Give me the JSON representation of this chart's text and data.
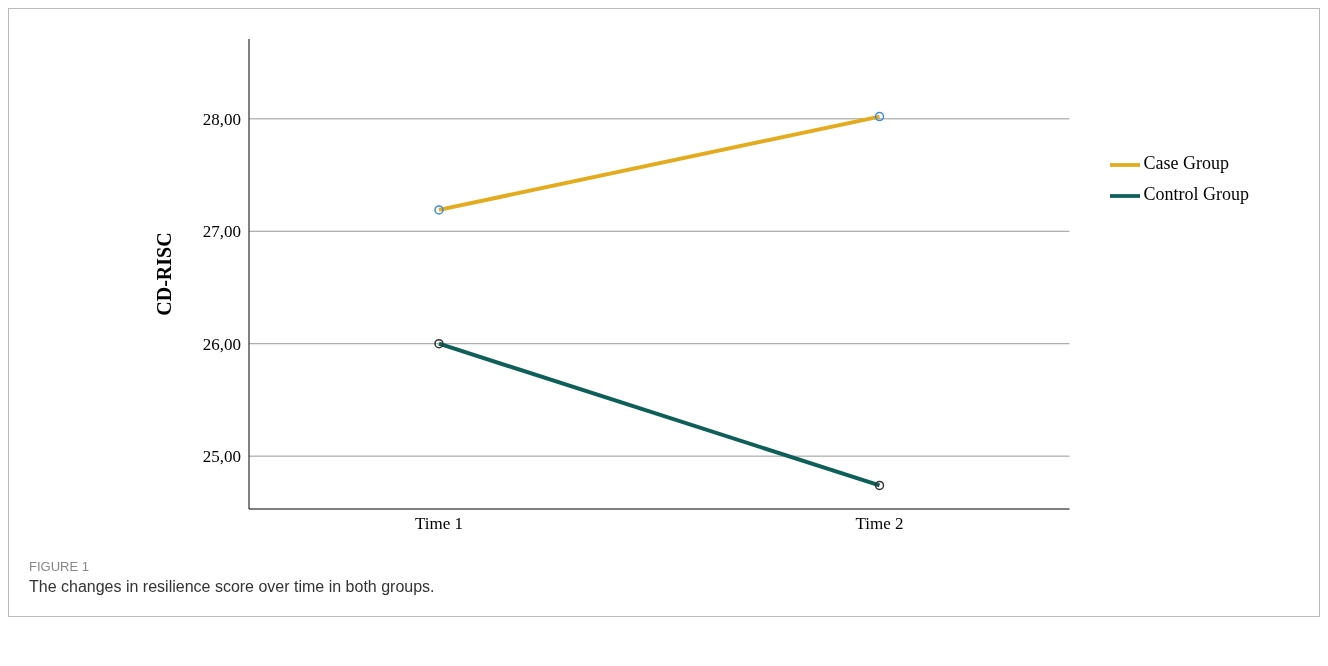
{
  "chart_data": {
    "type": "line",
    "categories": [
      "Time 1",
      "Time 2"
    ],
    "series": [
      {
        "name": "Case Group",
        "color": "#e3ab1e",
        "values": [
          27.19,
          28.02
        ]
      },
      {
        "name": "Control Group",
        "color": "#0d5f57",
        "values": [
          26.0,
          24.74
        ]
      }
    ],
    "ylabel": "CD-RISC",
    "ylim": [
      24.53,
      28.71
    ],
    "yticks": [
      {
        "value": 25,
        "label": "25,00"
      },
      {
        "value": 26,
        "label": "26,00"
      },
      {
        "value": 27,
        "label": "27,00"
      },
      {
        "value": 28,
        "label": "28,00"
      }
    ],
    "grid": "y",
    "legend": "right",
    "marker": "circle",
    "line_style": "solid",
    "annotations": [
      "FIGURE 1",
      "The changes in resilience score over time in both groups."
    ]
  }
}
